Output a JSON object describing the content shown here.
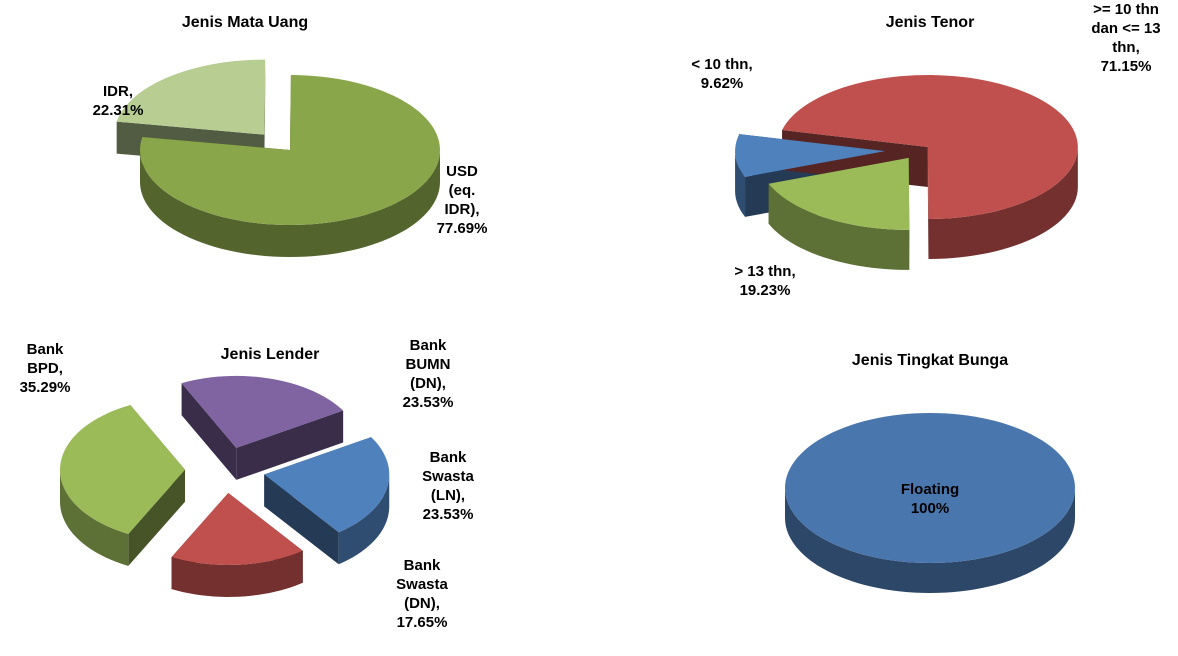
{
  "chart_data": [
    {
      "type": "pie",
      "title": "Jenis Mata Uang",
      "categories": [
        "IDR,",
        "USD (eq. IDR),"
      ],
      "values": [
        22.31,
        77.69
      ],
      "value_labels": [
        "22.31%",
        "77.69%"
      ],
      "colors": [
        "#b7cd92",
        "#8aa64b"
      ]
    },
    {
      "type": "pie",
      "title": "Jenis Tenor",
      "categories": [
        "< 10 thn,",
        ">= 10 thn dan <= 13 thn,",
        "> 13 thn,"
      ],
      "values": [
        9.62,
        71.15,
        19.23
      ],
      "value_labels": [
        "9.62%",
        "71.15%",
        "19.23%"
      ],
      "colors": [
        "#4f81bd",
        "#c0504d",
        "#9bbb59"
      ]
    },
    {
      "type": "pie",
      "title": "Jenis Lender",
      "categories": [
        "Bank BPD,",
        "Bank BUMN (DN),",
        "Bank Swasta (LN),",
        "Bank Swasta (DN),"
      ],
      "values": [
        35.29,
        23.53,
        23.53,
        17.65
      ],
      "value_labels": [
        "35.29%",
        "23.53%",
        "23.53%",
        "17.65%"
      ],
      "colors": [
        "#9bbb59",
        "#8064a2",
        "#4f81bd",
        "#c0504d"
      ]
    },
    {
      "type": "pie",
      "title": "Jenis Tingkat Bunga",
      "categories": [
        "Floating"
      ],
      "values": [
        100
      ],
      "value_labels": [
        "100%"
      ],
      "colors": [
        "#4a76ae"
      ]
    }
  ]
}
